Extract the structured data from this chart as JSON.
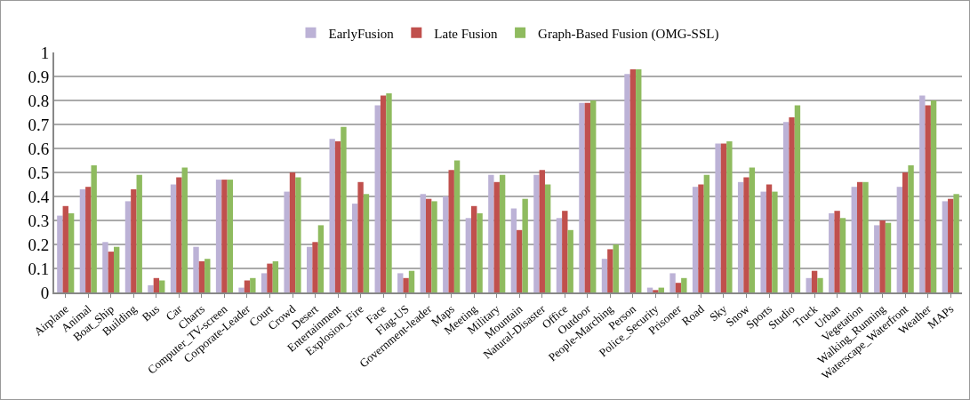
{
  "chart_data": {
    "type": "bar",
    "categories": [
      "Airplane",
      "Animal",
      "Boat_Ship",
      "Building",
      "Bus",
      "Car",
      "Charts",
      "Computer_TV-screen",
      "Corporate-Leader",
      "Court",
      "Crowd",
      "Desert",
      "Entertainment",
      "Explosion_Fire",
      "Face",
      "Flag-US",
      "Government-leader",
      "Maps",
      "Meeting",
      "Military",
      "Mountain",
      "Natural-Disaster",
      "Office",
      "Outdoor",
      "People-Marching",
      "Person",
      "Police_Security",
      "Prisoner",
      "Road",
      "Sky",
      "Snow",
      "Sports",
      "Studio",
      "Truck",
      "Urban",
      "Vegetation",
      "Walking_Running",
      "Waterscape_Waterfront",
      "Weather",
      "MAPs"
    ],
    "series": [
      {
        "name": "EarlyFusion",
        "color": "#bcb2d6",
        "values": [
          0.32,
          0.43,
          0.21,
          0.38,
          0.03,
          0.45,
          0.19,
          0.47,
          0.02,
          0.08,
          0.42,
          0.19,
          0.64,
          0.37,
          0.78,
          0.08,
          0.41,
          0.4,
          0.31,
          0.49,
          0.35,
          0.49,
          0.31,
          0.79,
          0.14,
          0.91,
          0.02,
          0.08,
          0.44,
          0.62,
          0.46,
          0.42,
          0.71,
          0.06,
          0.33,
          0.44,
          0.28,
          0.44,
          0.82,
          0.38
        ]
      },
      {
        "name": "Late Fusion",
        "color": "#c0504d",
        "values": [
          0.36,
          0.44,
          0.17,
          0.43,
          0.06,
          0.48,
          0.13,
          0.47,
          0.05,
          0.12,
          0.5,
          0.21,
          0.63,
          0.46,
          0.82,
          0.06,
          0.39,
          0.51,
          0.36,
          0.46,
          0.26,
          0.51,
          0.34,
          0.79,
          0.18,
          0.93,
          0.01,
          0.04,
          0.45,
          0.62,
          0.48,
          0.45,
          0.73,
          0.09,
          0.34,
          0.46,
          0.3,
          0.5,
          0.78,
          0.39
        ]
      },
      {
        "name": "Graph-Based Fusion (OMG-SSL)",
        "color": "#8fbb5f",
        "values": [
          0.33,
          0.53,
          0.19,
          0.49,
          0.05,
          0.52,
          0.14,
          0.47,
          0.06,
          0.13,
          0.48,
          0.28,
          0.69,
          0.41,
          0.83,
          0.09,
          0.38,
          0.55,
          0.33,
          0.49,
          0.39,
          0.45,
          0.26,
          0.8,
          0.2,
          0.93,
          0.02,
          0.06,
          0.49,
          0.63,
          0.52,
          0.42,
          0.78,
          0.06,
          0.31,
          0.46,
          0.29,
          0.53,
          0.8,
          0.41
        ]
      }
    ],
    "ylim": [
      0,
      1
    ],
    "yticks": [
      0,
      0.1,
      0.2,
      0.3,
      0.4,
      0.5,
      0.6,
      0.7,
      0.8,
      0.9,
      1
    ],
    "grid": "y",
    "legend": "top"
  }
}
